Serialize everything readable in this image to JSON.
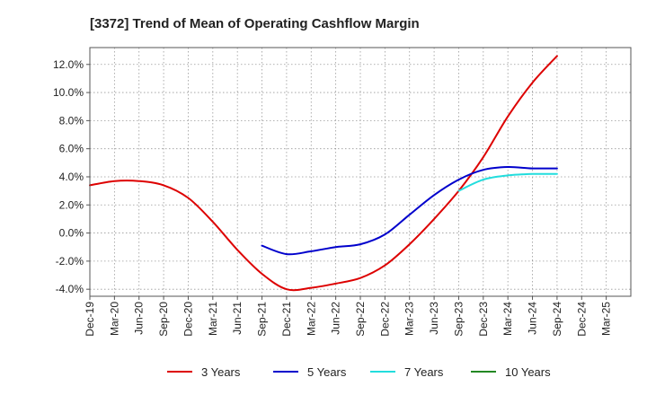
{
  "chart_data": {
    "type": "line",
    "title": "[3372]  Trend of Mean of Operating Cashflow Margin",
    "xlabel": "",
    "ylabel": "",
    "x_ticks": [
      "Dec-19",
      "Mar-20",
      "Jun-20",
      "Sep-20",
      "Dec-20",
      "Mar-21",
      "Jun-21",
      "Sep-21",
      "Dec-21",
      "Mar-22",
      "Jun-22",
      "Sep-22",
      "Dec-22",
      "Mar-23",
      "Jun-23",
      "Sep-23",
      "Dec-23",
      "Mar-24",
      "Jun-24",
      "Sep-24",
      "Dec-24",
      "Mar-25"
    ],
    "y_ticks": [
      "-4.0%",
      "-2.0%",
      "0.0%",
      "2.0%",
      "4.0%",
      "6.0%",
      "8.0%",
      "10.0%",
      "12.0%"
    ],
    "y_tick_values": [
      -4,
      -2,
      0,
      2,
      4,
      6,
      8,
      10,
      12
    ],
    "ylim": [
      -4.5,
      13.2
    ],
    "grid": true,
    "legend_position": "bottom",
    "series": [
      {
        "name": "3 Years",
        "color": "#dd0000",
        "start_index": 0,
        "values": [
          3.4,
          3.7,
          3.7,
          3.4,
          2.5,
          0.8,
          -1.2,
          -2.9,
          -4.0,
          -3.9,
          -3.6,
          -3.2,
          -2.3,
          -0.8,
          1.0,
          3.0,
          5.4,
          8.3,
          10.7,
          12.6
        ]
      },
      {
        "name": "5 Years",
        "color": "#0000cc",
        "start_index": 7,
        "values": [
          -0.9,
          -1.5,
          -1.3,
          -1.0,
          -0.8,
          -0.1,
          1.3,
          2.7,
          3.8,
          4.5,
          4.7,
          4.6,
          4.6
        ]
      },
      {
        "name": "7 Years",
        "color": "#22dddd",
        "start_index": 15,
        "values": [
          3.0,
          3.8,
          4.1,
          4.2,
          4.2
        ]
      },
      {
        "name": "10 Years",
        "color": "#228822",
        "start_index": 0,
        "values": []
      }
    ]
  }
}
